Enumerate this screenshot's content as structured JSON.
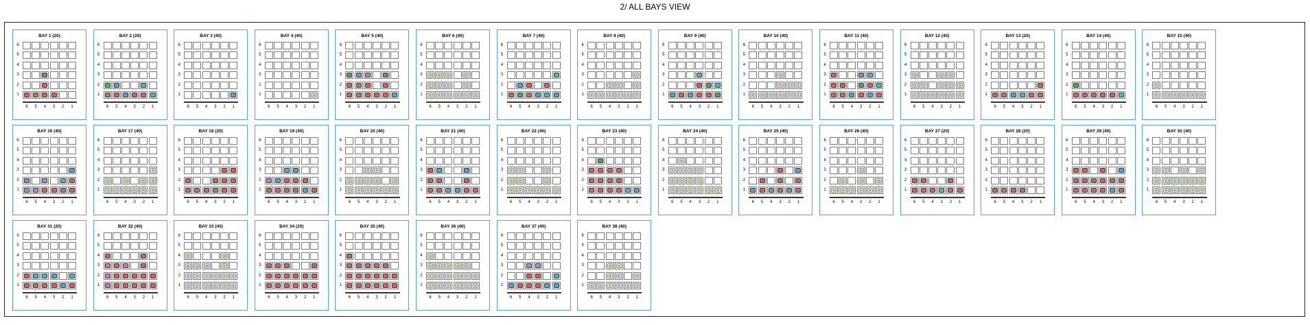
{
  "title": "2/ ALL BAYS VIEW",
  "tiers": [
    "6",
    "5",
    "4",
    "3",
    "2",
    "1"
  ],
  "rows": [
    "6",
    "5",
    "4",
    "3",
    "2",
    "1"
  ],
  "colors": {
    "green": "#5b9e66",
    "brown": "#a77d63",
    "red": "#d7605e",
    "blue": "#5b9ed8",
    "teal": "#58b3c0",
    "purple": "#a88bd2",
    "pink": "#e36bc9",
    "lime": "#2ecc40",
    "bay_border": "#5aa0d8",
    "x_mark": "#d73a3a"
  },
  "bays": [
    {
      "label": "BAY 1 (20)",
      "cells": {
        "3-3": "green",
        "2-3": "red",
        "1-1": "red",
        "1-2": "brown",
        "1-3": "red",
        "1-4": "red"
      }
    },
    {
      "label": "BAY 2 (20)",
      "cells": {
        "2-1": "lime",
        "2-2": "blue",
        "2-5": "teal",
        "1-1": "brown",
        "1-2": "red",
        "1-3": "blue",
        "1-4": "red",
        "1-5": "red",
        "1-6": "teal"
      }
    },
    {
      "label": "BAY 3 (40)",
      "cells": {
        "1-6": "blue"
      }
    },
    {
      "label": "BAY 4 (40)",
      "cells": {
        "1-6": "x"
      }
    },
    {
      "label": "BAY 5 (40)",
      "cells": {
        "3-1": "green",
        "3-2": "blue",
        "3-3": "purple",
        "3-5": "green",
        "2-1": "red",
        "2-2": "brown",
        "2-3": "red",
        "2-5": "red",
        "1-1": "red",
        "1-2": "brown",
        "1-3": "red",
        "1-4": "red",
        "1-5": "red",
        "1-6": "blue"
      }
    },
    {
      "label": "BAY 6 (40)",
      "cells": {
        "3-1": "x",
        "3-2": "x",
        "3-3": "x",
        "3-5": "x",
        "2-1": "x",
        "2-2": "x",
        "2-3": "x",
        "2-5": "x",
        "1-1": "x",
        "1-2": "x",
        "1-3": "x",
        "1-4": "x",
        "1-5": "x",
        "1-6": "x"
      }
    },
    {
      "label": "BAY 7 (40)",
      "cells": {
        "3-6": "teal",
        "2-2": "blue",
        "2-3": "red",
        "2-5": "red",
        "1-1": "red",
        "1-2": "green",
        "1-3": "brown",
        "1-4": "blue",
        "1-5": "teal",
        "1-6": "blue"
      }
    },
    {
      "label": "BAY 8 (40)",
      "cells": {
        "3-6": "x",
        "2-3": "x",
        "2-4": "x",
        "2-6": "x",
        "1-1": "x",
        "1-2": "x",
        "1-3": "x",
        "1-4": "x",
        "1-5": "x",
        "1-6": "x"
      }
    },
    {
      "label": "BAY 9 (40)",
      "cells": {
        "3-4": "teal",
        "2-4": "red",
        "2-5": "green",
        "2-6": "teal",
        "1-1": "blue",
        "1-2": "red",
        "1-3": "blue",
        "1-4": "red",
        "1-5": "red",
        "1-6": "green"
      }
    },
    {
      "label": "BAY 10 (40)",
      "cells": {
        "3-4": "x",
        "2-4": "x",
        "2-5": "x",
        "2-6": "x",
        "1-1": "x",
        "1-2": "x",
        "1-3": "x",
        "1-4": "x",
        "1-5": "x",
        "1-6": "x"
      }
    },
    {
      "label": "BAY 11 (40)",
      "cells": {
        "3-1": "red",
        "3-4": "blue",
        "3-5": "teal",
        "2-1": "red",
        "2-2": "red",
        "2-4": "green",
        "2-5": "red",
        "2-6": "teal",
        "1-1": "red",
        "1-2": "brown",
        "1-3": "blue",
        "1-4": "red",
        "1-5": "blue",
        "1-6": "red"
      }
    },
    {
      "label": "BAY 12 (40)",
      "cells": {
        "3-1": "x",
        "3-4": "x",
        "3-5": "x",
        "2-1": "x",
        "2-2": "x",
        "2-4": "x",
        "2-5": "x",
        "2-6": "x",
        "1-1": "x",
        "1-2": "x",
        "1-3": "x",
        "1-4": "x",
        "1-5": "x",
        "1-6": "x"
      }
    },
    {
      "label": "BAY 13 (20)",
      "cells": {
        "2-6": "red",
        "1-1": "red",
        "1-2": "brown",
        "1-3": "blue",
        "1-4": "teal",
        "1-5": "red",
        "1-6": "red"
      }
    },
    {
      "label": "BAY 14 (40)",
      "cells": {
        "2-1": "green",
        "1-1": "red",
        "1-2": "red",
        "1-3": "red",
        "1-4": "red",
        "1-5": "red",
        "1-6": "teal"
      }
    },
    {
      "label": "BAY 15 (40)",
      "cells": {
        "2-1": "x",
        "1-1": "x",
        "1-2": "x",
        "1-3": "x",
        "1-4": "x",
        "1-5": "x",
        "1-6": "x"
      }
    },
    {
      "label": "BAY 16 (40)",
      "cells": {
        "3-6": "blue",
        "2-1": "blue",
        "2-3": "purple",
        "2-5": "teal",
        "2-6": "red",
        "1-1": "purple",
        "1-2": "purple",
        "1-3": "red",
        "1-4": "red",
        "1-5": "brown",
        "1-6": "red"
      }
    },
    {
      "label": "BAY 17 (40)",
      "cells": {
        "3-6": "x",
        "2-1": "x",
        "2-3": "x",
        "2-5": "x",
        "2-6": "x",
        "1-1": "x",
        "1-2": "x",
        "1-3": "x",
        "1-4": "x",
        "1-5": "x",
        "1-6": "x"
      }
    },
    {
      "label": "BAY 18 (20)",
      "cells": {
        "3-5": "red",
        "3-6": "red",
        "2-1": "red",
        "2-4": "red",
        "2-5": "red",
        "2-6": "red",
        "1-1": "red",
        "1-2": "brown",
        "1-3": "red",
        "1-4": "brown",
        "1-5": "red",
        "1-6": "red"
      }
    },
    {
      "label": "BAY 19 (40)",
      "cells": {
        "3-3": "teal",
        "3-4": "blue",
        "2-1": "purple",
        "2-2": "blue",
        "2-3": "red",
        "2-4": "red",
        "2-5": "red",
        "1-1": "red",
        "1-2": "red",
        "1-3": "red",
        "1-4": "red",
        "1-5": "blue",
        "1-6": "red"
      }
    },
    {
      "label": "BAY 20 (40)",
      "cells": {
        "3-3": "x",
        "3-4": "x",
        "2-1": "x",
        "2-2": "x",
        "2-3": "x",
        "2-4": "x",
        "2-6": "x",
        "1-1": "x",
        "1-2": "x",
        "1-3": "x",
        "1-4": "x",
        "1-5": "x",
        "1-6": "x"
      }
    },
    {
      "label": "BAY 21 (40)",
      "cells": {
        "3-1": "red",
        "3-2": "blue",
        "3-5": "blue",
        "2-1": "red",
        "2-2": "red",
        "2-5": "red",
        "1-1": "red",
        "1-2": "red",
        "1-3": "blue",
        "1-4": "blue",
        "1-5": "red",
        "1-6": "red"
      }
    },
    {
      "label": "BAY 22 (40)",
      "cells": {
        "3-1": "x",
        "3-2": "x",
        "3-5": "x",
        "2-1": "x",
        "2-2": "x",
        "2-5": "x",
        "1-1": "x",
        "1-2": "x",
        "1-3": "x",
        "1-4": "x",
        "1-5": "x",
        "1-6": "x"
      }
    },
    {
      "label": "BAY 23 (40)",
      "cells": {
        "4-2": "green",
        "3-1": "red",
        "3-2": "red",
        "3-3": "red",
        "3-4": "red",
        "2-1": "red",
        "2-2": "red",
        "2-3": "red",
        "2-4": "red",
        "1-1": "red",
        "1-2": "red",
        "1-3": "red",
        "1-4": "red",
        "1-5": "teal",
        "1-6": "blue"
      }
    },
    {
      "label": "BAY 24 (40)",
      "cells": {
        "4-2": "x",
        "3-1": "x",
        "3-2": "x",
        "3-3": "x",
        "3-4": "x",
        "2-1": "x",
        "2-2": "x",
        "2-3": "x",
        "2-4": "x",
        "1-1": "x",
        "1-2": "x",
        "1-3": "x",
        "1-4": "x",
        "1-5": "x",
        "1-6": "x"
      }
    },
    {
      "label": "BAY 25 (40)",
      "cells": {
        "3-4": "red",
        "3-6": "blue",
        "2-2": "red",
        "2-4": "red",
        "2-6": "red",
        "1-1": "blue",
        "1-2": "red",
        "1-3": "blue",
        "1-4": "red",
        "1-5": "blue",
        "1-6": "red"
      }
    },
    {
      "label": "BAY 26 (40)",
      "cells": {
        "3-4": "x",
        "2-2": "x",
        "2-4": "x",
        "2-6": "x",
        "1-1": "x",
        "1-2": "x",
        "1-3": "x",
        "1-4": "x",
        "1-5": "x",
        "1-6": "x"
      }
    },
    {
      "label": "BAY 27 (20)",
      "cells": {
        "2-1": "red",
        "2-2": "red",
        "2-5": "red",
        "1-1": "red",
        "1-2": "red",
        "1-3": "red",
        "1-4": "teal",
        "1-5": "red",
        "1-6": "red"
      }
    },
    {
      "label": "BAY 28 (20)",
      "cells": {
        "1-1": "red",
        "1-2": "brown",
        "1-3": "red",
        "1-4": "red"
      }
    },
    {
      "label": "BAY 29 (40)",
      "cells": {
        "3-1": "red",
        "3-2": "red",
        "3-4": "red",
        "3-6": "blue",
        "2-1": "red",
        "2-2": "red",
        "2-3": "red",
        "2-4": "red",
        "2-5": "red",
        "2-6": "red",
        "1-1": "red",
        "1-2": "red",
        "1-3": "red",
        "1-4": "red",
        "1-5": "blue",
        "1-6": "red"
      }
    },
    {
      "label": "BAY 30 (40)",
      "cells": {
        "3-1": "x",
        "3-2": "x",
        "3-4": "x",
        "3-6": "x",
        "2-1": "x",
        "2-2": "x",
        "2-3": "x",
        "2-4": "x",
        "2-5": "x",
        "2-6": "x",
        "1-1": "x",
        "1-2": "x",
        "1-3": "x",
        "1-4": "x",
        "1-5": "x",
        "1-6": "x"
      }
    },
    {
      "label": "BAY 31 (20)",
      "cells": {
        "2-1": "red",
        "2-2": "teal",
        "2-3": "teal",
        "2-4": "blue",
        "2-6": "teal",
        "1-1": "red",
        "1-2": "red",
        "1-3": "red",
        "1-4": "red",
        "1-5": "blue",
        "1-6": "red"
      }
    },
    {
      "label": "BAY 32 (40)",
      "cells": {
        "4-1": "red",
        "4-5": "red",
        "3-1": "pink",
        "3-2": "red",
        "3-3": "pink",
        "3-5": "red",
        "2-1": "pink",
        "2-2": "red",
        "2-3": "red",
        "2-4": "red",
        "2-5": "red",
        "2-6": "red",
        "1-1": "pink",
        "1-2": "red",
        "1-3": "red",
        "1-4": "red",
        "1-5": "red",
        "1-6": "red"
      }
    },
    {
      "label": "BAY 33 (40)",
      "cells": {
        "4-1": "x",
        "4-5": "x",
        "3-1": "xp",
        "3-2": "x",
        "3-3": "xp",
        "3-5": "x",
        "2-1": "xp",
        "2-2": "x",
        "2-3": "x",
        "2-4": "x",
        "2-5": "x",
        "2-6": "x",
        "1-1": "xp",
        "1-2": "x",
        "1-3": "x",
        "1-4": "x",
        "1-5": "x",
        "1-6": "x"
      }
    },
    {
      "label": "BAY 34 (20)",
      "cells": {
        "3-1": "red",
        "3-2": "red",
        "3-3": "red",
        "3-6": "red",
        "2-1": "red",
        "2-2": "red",
        "2-3": "red",
        "2-4": "red",
        "2-5": "red",
        "2-6": "red",
        "1-1": "red",
        "1-2": "red",
        "1-3": "red",
        "1-4": "red",
        "1-5": "red",
        "1-6": "red"
      }
    },
    {
      "label": "BAY 35 (40)",
      "cells": {
        "4-1": "red",
        "3-1": "red",
        "3-2": "red",
        "3-3": "red",
        "3-4": "red",
        "3-5": "red",
        "2-1": "red",
        "2-2": "red",
        "2-3": "red",
        "2-4": "red",
        "2-5": "red",
        "2-6": "red",
        "1-1": "red",
        "1-2": "red",
        "1-3": "red",
        "1-4": "red",
        "1-5": "red",
        "1-6": "red"
      }
    },
    {
      "label": "BAY 36 (40)",
      "cells": {
        "4-1": "x",
        "3-1": "x",
        "3-2": "x",
        "3-3": "x",
        "3-4": "x",
        "3-5": "x",
        "2-1": "x",
        "2-2": "x",
        "2-3": "x",
        "2-4": "x",
        "2-5": "x",
        "2-6": "x",
        "1-1": "x",
        "1-2": "x",
        "1-3": "x",
        "1-4": "x",
        "1-5": "x",
        "1-6": "x"
      }
    },
    {
      "label": "BAY 37 (40)",
      "cells": {
        "3-3": "purple",
        "3-4": "purple",
        "2-3": "red",
        "2-4": "red",
        "2-6": "teal",
        "1-1": "blue",
        "1-2": "red",
        "1-3": "red",
        "1-4": "red",
        "1-5": "blue",
        "1-6": "blue"
      }
    },
    {
      "label": "BAY 38 (40)",
      "cells": {
        "3-3": "x",
        "3-4": "x",
        "2-3": "x",
        "2-4": "x",
        "2-6": "x",
        "1-1": "x",
        "1-2": "x",
        "1-3": "x",
        "1-4": "x",
        "1-5": "x",
        "1-6": "x"
      }
    }
  ]
}
